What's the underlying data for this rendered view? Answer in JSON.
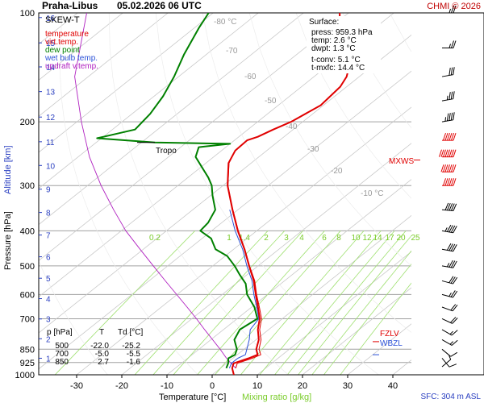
{
  "header": {
    "station": "Praha-Libus",
    "datetime": "05.02.2026 06 UTC",
    "copyright": "CHMI © 2026"
  },
  "legend": {
    "title": "SKEW-T",
    "items": [
      {
        "label": "temperature",
        "color": "#e00000"
      },
      {
        "label": "virt.temp.",
        "color": "#e00000"
      },
      {
        "label": "dew point",
        "color": "#008000"
      },
      {
        "label": "wet bulb temp.",
        "color": "#2a50d8"
      },
      {
        "label": "updraft v.temp.",
        "color": "#b020c0"
      }
    ]
  },
  "surface": {
    "title": "Surface:",
    "press": "press: 959.3 hPa",
    "temp": "temp: 2.6 °C",
    "dwpt": "dwpt: 1.3 °C",
    "tconv": "t-conv: 5.1 °C",
    "tmxfc": "t-mxfc: 14.4 °C"
  },
  "labels": {
    "tropo": "Tropo",
    "mxws": "MXWS",
    "fzlv": "FZLV",
    "wbzl": "WBZL",
    "sfc": "SFC: 304 m ASL",
    "xlabel": "Temperature [°C]",
    "xlabel2": "Mixing ratio [g/kg]",
    "ylabel": "Pressure [hPa]",
    "ylabel2": "Altitude [km]"
  },
  "table": {
    "headers": [
      "p [hPa]",
      "T",
      "Td [°C]"
    ],
    "rows": [
      [
        "500",
        "-22.0",
        "-25.2"
      ],
      [
        "700",
        "-5.0",
        "-5.5"
      ],
      [
        "850",
        "2.7",
        "-1.6"
      ]
    ]
  },
  "chart_data": {
    "type": "line",
    "title": "Praha-Libus 05.02.2026 06 UTC",
    "xlabel": "Temperature [°C]",
    "ylabel": "Pressure [hPa]",
    "y2label": "Altitude [km]",
    "x_ticks": [
      -30,
      -20,
      -10,
      0,
      10,
      20,
      30,
      40
    ],
    "p_ticks": [
      100,
      200,
      300,
      400,
      500,
      600,
      700,
      850,
      925,
      1000
    ],
    "p_grid": [
      100,
      200,
      300,
      400,
      500,
      600,
      700,
      850,
      925,
      1000
    ],
    "y_scale": "log-pressure",
    "xlim": [
      -36,
      45
    ],
    "plim": [
      100,
      1000
    ],
    "skew_labels": [
      "-80 °C",
      "-70",
      "-60",
      "-50",
      "-40",
      "-30",
      "-20",
      "-10 °C"
    ],
    "altitude_ticks_km": [
      1,
      2,
      3,
      4,
      5,
      6,
      7,
      8,
      9,
      10,
      11,
      12,
      13,
      14,
      15,
      16
    ],
    "mixing_ratio_labels": [
      "0.2",
      "1",
      "1.4",
      "2",
      "3",
      "4",
      "6",
      "8",
      "10",
      "12",
      "14",
      "17",
      "20",
      "25"
    ],
    "grid": true,
    "series": [
      {
        "name": "temperature",
        "color": "#e00000",
        "points": [
          [
            1000,
            4.8
          ],
          [
            959,
            2.6
          ],
          [
            930,
            1.6
          ],
          [
            900,
            3.5
          ],
          [
            880,
            4.5
          ],
          [
            850,
            2.7
          ],
          [
            800,
            0.6
          ],
          [
            750,
            -2.4
          ],
          [
            700,
            -5.0
          ],
          [
            650,
            -8.6
          ],
          [
            600,
            -12.6
          ],
          [
            550,
            -16.8
          ],
          [
            500,
            -22.0
          ],
          [
            450,
            -27.6
          ],
          [
            400,
            -34.2
          ],
          [
            350,
            -41.2
          ],
          [
            300,
            -49.0
          ],
          [
            260,
            -55.0
          ],
          [
            240,
            -57.0
          ],
          [
            225,
            -57.2
          ],
          [
            220,
            -55.8
          ],
          [
            210,
            -54.4
          ],
          [
            200,
            -52.6
          ],
          [
            180,
            -50.6
          ],
          [
            170,
            -51.0
          ],
          [
            160,
            -51.4
          ],
          [
            150,
            -52.8
          ],
          [
            140,
            -55.2
          ],
          [
            130,
            -58.8
          ],
          [
            120,
            -63.2
          ],
          [
            110,
            -67.8
          ],
          [
            100,
            -72.0
          ]
        ]
      },
      {
        "name": "virt.temp.",
        "color": "#e00000",
        "points": [
          [
            959,
            3.4
          ],
          [
            930,
            2.4
          ],
          [
            900,
            4.3
          ],
          [
            880,
            5.2
          ],
          [
            850,
            3.3
          ],
          [
            800,
            1.1
          ],
          [
            750,
            -2.0
          ],
          [
            700,
            -4.6
          ],
          [
            650,
            -8.3
          ],
          [
            600,
            -12.4
          ],
          [
            550,
            -16.6
          ],
          [
            500,
            -21.9
          ],
          [
            450,
            -27.5
          ],
          [
            400,
            -34.1
          ],
          [
            350,
            -41.1
          ],
          [
            300,
            -48.9
          ],
          [
            260,
            -54.9
          ],
          [
            240,
            -57.0
          ],
          [
            225,
            -57.2
          ]
        ]
      },
      {
        "name": "dew point",
        "color": "#008000",
        "points": [
          [
            959,
            1.3
          ],
          [
            930,
            0.4
          ],
          [
            900,
            -1.0
          ],
          [
            880,
            -0.5
          ],
          [
            850,
            -1.6
          ],
          [
            800,
            -4.8
          ],
          [
            750,
            -6.4
          ],
          [
            700,
            -5.5
          ],
          [
            650,
            -9.4
          ],
          [
            600,
            -14.5
          ],
          [
            560,
            -17.8
          ],
          [
            530,
            -21.5
          ],
          [
            500,
            -25.2
          ],
          [
            470,
            -29.5
          ],
          [
            450,
            -34.0
          ],
          [
            420,
            -38.0
          ],
          [
            400,
            -42.5
          ],
          [
            380,
            -43.0
          ],
          [
            350,
            -45.0
          ],
          [
            320,
            -49.5
          ],
          [
            300,
            -52.5
          ],
          [
            285,
            -55.5
          ],
          [
            270,
            -59.0
          ],
          [
            250,
            -64.0
          ],
          [
            235,
            -66.0
          ],
          [
            230,
            -60.0
          ],
          [
            228,
            -77.0
          ],
          [
            222,
            -91.0
          ],
          [
            210,
            -85.0
          ],
          [
            190,
            -86.0
          ],
          [
            170,
            -88.0
          ],
          [
            150,
            -91.0
          ],
          [
            130,
            -95.0
          ],
          [
            110,
            -99.0
          ],
          [
            100,
            -101.0
          ]
        ]
      },
      {
        "name": "wet bulb temp.",
        "color": "#2a50d8",
        "points": [
          [
            959,
            2.0
          ],
          [
            930,
            1.1
          ],
          [
            900,
            1.1
          ],
          [
            880,
            1.8
          ],
          [
            850,
            0.6
          ],
          [
            800,
            -1.5
          ],
          [
            750,
            -4.1
          ],
          [
            700,
            -5.2
          ],
          [
            650,
            -8.9
          ],
          [
            600,
            -13.0
          ],
          [
            550,
            -17.2
          ],
          [
            500,
            -22.5
          ],
          [
            450,
            -28.0
          ],
          [
            400,
            -34.8
          ],
          [
            350,
            -41.8
          ]
        ]
      },
      {
        "name": "updraft v.temp.",
        "color": "#b020c0",
        "points": [
          [
            959,
            3.4
          ],
          [
            900,
            -1.4
          ],
          [
            850,
            -5.3
          ],
          [
            800,
            -9.6
          ],
          [
            750,
            -14.2
          ],
          [
            700,
            -19.0
          ],
          [
            650,
            -24.3
          ],
          [
            600,
            -30.1
          ],
          [
            550,
            -36.4
          ],
          [
            500,
            -43.2
          ],
          [
            450,
            -50.7
          ],
          [
            400,
            -59.0
          ],
          [
            350,
            -67.5
          ],
          [
            300,
            -77.0
          ],
          [
            250,
            -87.5
          ],
          [
            200,
            -99.0
          ],
          [
            150,
            -113.0
          ],
          [
            100,
            -128.0
          ]
        ]
      }
    ],
    "markers": {
      "tropopause_hpa": 228,
      "fzlv_hpa": 810,
      "wbzl_hpa": 880,
      "mxws_hpa": 255
    },
    "wind_barbs": {
      "pressures": [
        100,
        125,
        150,
        175,
        200,
        225,
        250,
        275,
        300,
        350,
        400,
        450,
        500,
        550,
        600,
        650,
        700,
        750,
        800,
        850,
        900,
        950
      ],
      "speeds_kt": [
        25,
        25,
        30,
        35,
        45,
        60,
        80,
        70,
        60,
        50,
        45,
        40,
        35,
        30,
        25,
        20,
        20,
        15,
        15,
        10,
        10,
        5
      ],
      "directions_deg": [
        270,
        270,
        260,
        260,
        260,
        270,
        270,
        270,
        270,
        275,
        280,
        280,
        280,
        285,
        285,
        290,
        295,
        300,
        300,
        310,
        320,
        230
      ]
    }
  }
}
